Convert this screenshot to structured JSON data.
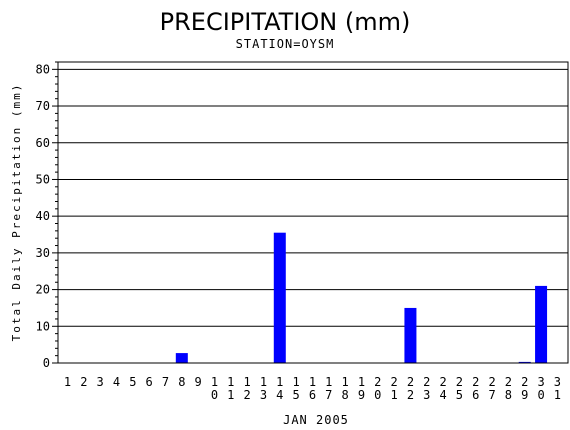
{
  "chart_data": {
    "type": "bar",
    "title": "PRECIPITATION (mm)",
    "subtitle": "STATION=OYSM",
    "xlabel": "JAN 2005",
    "ylabel": "Total Daily Precipitation (mm)",
    "categories": [
      "1",
      "2",
      "3",
      "4",
      "5",
      "6",
      "7",
      "8",
      "9",
      "10",
      "11",
      "12",
      "13",
      "14",
      "15",
      "16",
      "17",
      "18",
      "19",
      "20",
      "21",
      "22",
      "23",
      "24",
      "25",
      "26",
      "27",
      "28",
      "29",
      "30",
      "31"
    ],
    "values": [
      0,
      0,
      0,
      0,
      0,
      0,
      0,
      2.7,
      0,
      0,
      0,
      0,
      0,
      35.5,
      0,
      0,
      0,
      0,
      0,
      0,
      0,
      15,
      0,
      0,
      0,
      0,
      0,
      0,
      0.3,
      21,
      0
    ],
    "ylim": [
      0,
      82
    ],
    "yticks": [
      0,
      10,
      20,
      30,
      40,
      50,
      60,
      70,
      80
    ],
    "grid": true,
    "bar_color": "#0000ff"
  }
}
